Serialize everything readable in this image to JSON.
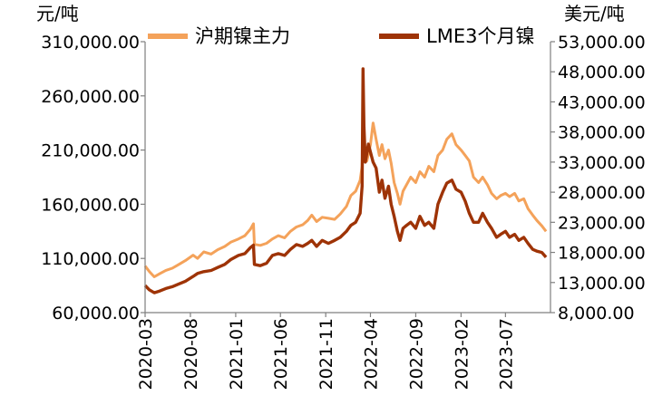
{
  "chart_data": {
    "type": "line",
    "title": "",
    "y_left": {
      "unit_label": "元/吨",
      "range": [
        60000,
        310000
      ],
      "ticks": [
        60000,
        110000,
        160000,
        210000,
        260000,
        310000
      ],
      "tick_labels": [
        "60,000.00",
        "110,000.00",
        "160,000.00",
        "210,000.00",
        "260,000.00",
        "310,000.00"
      ]
    },
    "y_right": {
      "unit_label": "美元/吨",
      "range": [
        8000,
        53000
      ],
      "ticks": [
        8000,
        13000,
        18000,
        23000,
        28000,
        33000,
        38000,
        43000,
        48000,
        53000
      ],
      "tick_labels": [
        "8,000.00",
        "13,000.00",
        "18,000.00",
        "23,000.00",
        "28,000.00",
        "33,000.00",
        "38,000.00",
        "43,000.00",
        "48,000.00",
        "53,000.00"
      ]
    },
    "x_axis": {
      "range": [
        "2020-03",
        "2023-11"
      ],
      "tick_labels": [
        "2020-03",
        "2020-08",
        "2021-01",
        "2021-06",
        "2021-11",
        "2022-04",
        "2022-09",
        "2023-02",
        "2023-07"
      ]
    },
    "legend_position": "top",
    "grid": false,
    "series": [
      {
        "name": "沪期镍主力",
        "axis": "left",
        "color": "#F4A25A",
        "points": [
          [
            "2020-03-01",
            103000
          ],
          [
            "2020-03-15",
            98000
          ],
          [
            "2020-04-01",
            93000
          ],
          [
            "2020-04-20",
            96000
          ],
          [
            "2020-05-10",
            99000
          ],
          [
            "2020-06-01",
            101000
          ],
          [
            "2020-06-20",
            104000
          ],
          [
            "2020-07-15",
            108000
          ],
          [
            "2020-08-10",
            113000
          ],
          [
            "2020-08-25",
            110000
          ],
          [
            "2020-09-15",
            116000
          ],
          [
            "2020-10-10",
            114000
          ],
          [
            "2020-11-01",
            118000
          ],
          [
            "2020-11-25",
            121000
          ],
          [
            "2020-12-15",
            125000
          ],
          [
            "2021-01-10",
            128000
          ],
          [
            "2021-02-01",
            131000
          ],
          [
            "2021-02-20",
            137000
          ],
          [
            "2021-03-02",
            142000
          ],
          [
            "2021-03-05",
            123000
          ],
          [
            "2021-03-25",
            122000
          ],
          [
            "2021-04-15",
            124000
          ],
          [
            "2021-05-05",
            128000
          ],
          [
            "2021-05-25",
            131000
          ],
          [
            "2021-06-15",
            129000
          ],
          [
            "2021-07-05",
            135000
          ],
          [
            "2021-07-25",
            139000
          ],
          [
            "2021-08-15",
            141000
          ],
          [
            "2021-09-01",
            145000
          ],
          [
            "2021-09-15",
            150000
          ],
          [
            "2021-10-01",
            144000
          ],
          [
            "2021-10-20",
            148000
          ],
          [
            "2021-11-10",
            147000
          ],
          [
            "2021-12-01",
            146000
          ],
          [
            "2021-12-20",
            151000
          ],
          [
            "2022-01-10",
            158000
          ],
          [
            "2022-01-25",
            168000
          ],
          [
            "2022-02-10",
            172000
          ],
          [
            "2022-02-25",
            182000
          ],
          [
            "2022-03-04",
            195000
          ],
          [
            "2022-03-08",
            240000
          ],
          [
            "2022-03-12",
            215000
          ],
          [
            "2022-03-20",
            200000
          ],
          [
            "2022-04-01",
            215000
          ],
          [
            "2022-04-10",
            235000
          ],
          [
            "2022-04-20",
            220000
          ],
          [
            "2022-05-01",
            205000
          ],
          [
            "2022-05-10",
            215000
          ],
          [
            "2022-05-20",
            202000
          ],
          [
            "2022-06-01",
            210000
          ],
          [
            "2022-06-10",
            198000
          ],
          [
            "2022-06-20",
            180000
          ],
          [
            "2022-07-01",
            170000
          ],
          [
            "2022-07-10",
            160000
          ],
          [
            "2022-07-20",
            172000
          ],
          [
            "2022-08-01",
            178000
          ],
          [
            "2022-08-15",
            185000
          ],
          [
            "2022-09-01",
            180000
          ],
          [
            "2022-09-15",
            190000
          ],
          [
            "2022-10-01",
            185000
          ],
          [
            "2022-10-15",
            195000
          ],
          [
            "2022-11-01",
            190000
          ],
          [
            "2022-11-15",
            205000
          ],
          [
            "2022-12-01",
            210000
          ],
          [
            "2022-12-15",
            220000
          ],
          [
            "2023-01-01",
            225000
          ],
          [
            "2023-01-15",
            215000
          ],
          [
            "2023-02-01",
            210000
          ],
          [
            "2023-02-15",
            205000
          ],
          [
            "2023-03-01",
            200000
          ],
          [
            "2023-03-15",
            185000
          ],
          [
            "2023-04-01",
            180000
          ],
          [
            "2023-04-15",
            185000
          ],
          [
            "2023-05-01",
            178000
          ],
          [
            "2023-05-15",
            170000
          ],
          [
            "2023-06-01",
            165000
          ],
          [
            "2023-06-15",
            168000
          ],
          [
            "2023-07-01",
            170000
          ],
          [
            "2023-07-15",
            167000
          ],
          [
            "2023-08-01",
            170000
          ],
          [
            "2023-08-15",
            163000
          ],
          [
            "2023-09-01",
            165000
          ],
          [
            "2023-09-15",
            156000
          ],
          [
            "2023-10-01",
            150000
          ],
          [
            "2023-10-15",
            145000
          ],
          [
            "2023-11-01",
            140000
          ],
          [
            "2023-11-15",
            135000
          ]
        ]
      },
      {
        "name": "LME3个月镍",
        "axis": "right",
        "color": "#9E3306",
        "points": [
          [
            "2020-03-01",
            12500
          ],
          [
            "2020-03-15",
            11800
          ],
          [
            "2020-04-01",
            11300
          ],
          [
            "2020-04-20",
            11600
          ],
          [
            "2020-05-10",
            12000
          ],
          [
            "2020-06-01",
            12300
          ],
          [
            "2020-06-20",
            12700
          ],
          [
            "2020-07-15",
            13200
          ],
          [
            "2020-08-10",
            14000
          ],
          [
            "2020-08-25",
            14500
          ],
          [
            "2020-09-15",
            14800
          ],
          [
            "2020-10-10",
            15000
          ],
          [
            "2020-11-01",
            15500
          ],
          [
            "2020-11-25",
            16000
          ],
          [
            "2020-12-15",
            16800
          ],
          [
            "2021-01-10",
            17500
          ],
          [
            "2021-02-01",
            17800
          ],
          [
            "2021-02-20",
            18800
          ],
          [
            "2021-03-02",
            19200
          ],
          [
            "2021-03-05",
            16000
          ],
          [
            "2021-03-25",
            15800
          ],
          [
            "2021-04-15",
            16200
          ],
          [
            "2021-05-05",
            17500
          ],
          [
            "2021-05-25",
            17800
          ],
          [
            "2021-06-15",
            17500
          ],
          [
            "2021-07-05",
            18500
          ],
          [
            "2021-07-25",
            19300
          ],
          [
            "2021-08-15",
            19000
          ],
          [
            "2021-09-01",
            19500
          ],
          [
            "2021-09-15",
            20000
          ],
          [
            "2021-10-01",
            19000
          ],
          [
            "2021-10-20",
            20000
          ],
          [
            "2021-11-10",
            19500
          ],
          [
            "2021-12-01",
            20000
          ],
          [
            "2021-12-20",
            20500
          ],
          [
            "2022-01-10",
            21500
          ],
          [
            "2022-01-25",
            22500
          ],
          [
            "2022-02-10",
            23000
          ],
          [
            "2022-02-25",
            24500
          ],
          [
            "2022-03-04",
            29000
          ],
          [
            "2022-03-07",
            48500
          ],
          [
            "2022-03-10",
            39000
          ],
          [
            "2022-03-15",
            33000
          ],
          [
            "2022-03-25",
            36000
          ],
          [
            "2022-04-10",
            33000
          ],
          [
            "2022-04-20",
            32000
          ],
          [
            "2022-05-01",
            28000
          ],
          [
            "2022-05-10",
            30000
          ],
          [
            "2022-05-20",
            27000
          ],
          [
            "2022-06-01",
            29000
          ],
          [
            "2022-06-10",
            26000
          ],
          [
            "2022-06-20",
            24000
          ],
          [
            "2022-07-01",
            21500
          ],
          [
            "2022-07-10",
            20000
          ],
          [
            "2022-07-20",
            22000
          ],
          [
            "2022-08-01",
            22500
          ],
          [
            "2022-08-15",
            23000
          ],
          [
            "2022-09-01",
            22000
          ],
          [
            "2022-09-15",
            24000
          ],
          [
            "2022-10-01",
            22500
          ],
          [
            "2022-10-15",
            23000
          ],
          [
            "2022-11-01",
            22000
          ],
          [
            "2022-11-15",
            26000
          ],
          [
            "2022-12-01",
            28000
          ],
          [
            "2022-12-15",
            29500
          ],
          [
            "2023-01-01",
            30000
          ],
          [
            "2023-01-15",
            28500
          ],
          [
            "2023-02-01",
            28000
          ],
          [
            "2023-02-15",
            26500
          ],
          [
            "2023-03-01",
            24500
          ],
          [
            "2023-03-15",
            23000
          ],
          [
            "2023-04-01",
            23000
          ],
          [
            "2023-04-15",
            24500
          ],
          [
            "2023-05-01",
            23000
          ],
          [
            "2023-05-15",
            22000
          ],
          [
            "2023-06-01",
            20500
          ],
          [
            "2023-06-15",
            21000
          ],
          [
            "2023-07-01",
            21500
          ],
          [
            "2023-07-15",
            20500
          ],
          [
            "2023-08-01",
            21000
          ],
          [
            "2023-08-15",
            20000
          ],
          [
            "2023-09-01",
            20500
          ],
          [
            "2023-09-15",
            19500
          ],
          [
            "2023-10-01",
            18500
          ],
          [
            "2023-10-15",
            18200
          ],
          [
            "2023-11-01",
            18000
          ],
          [
            "2023-11-15",
            17200
          ]
        ]
      }
    ]
  }
}
